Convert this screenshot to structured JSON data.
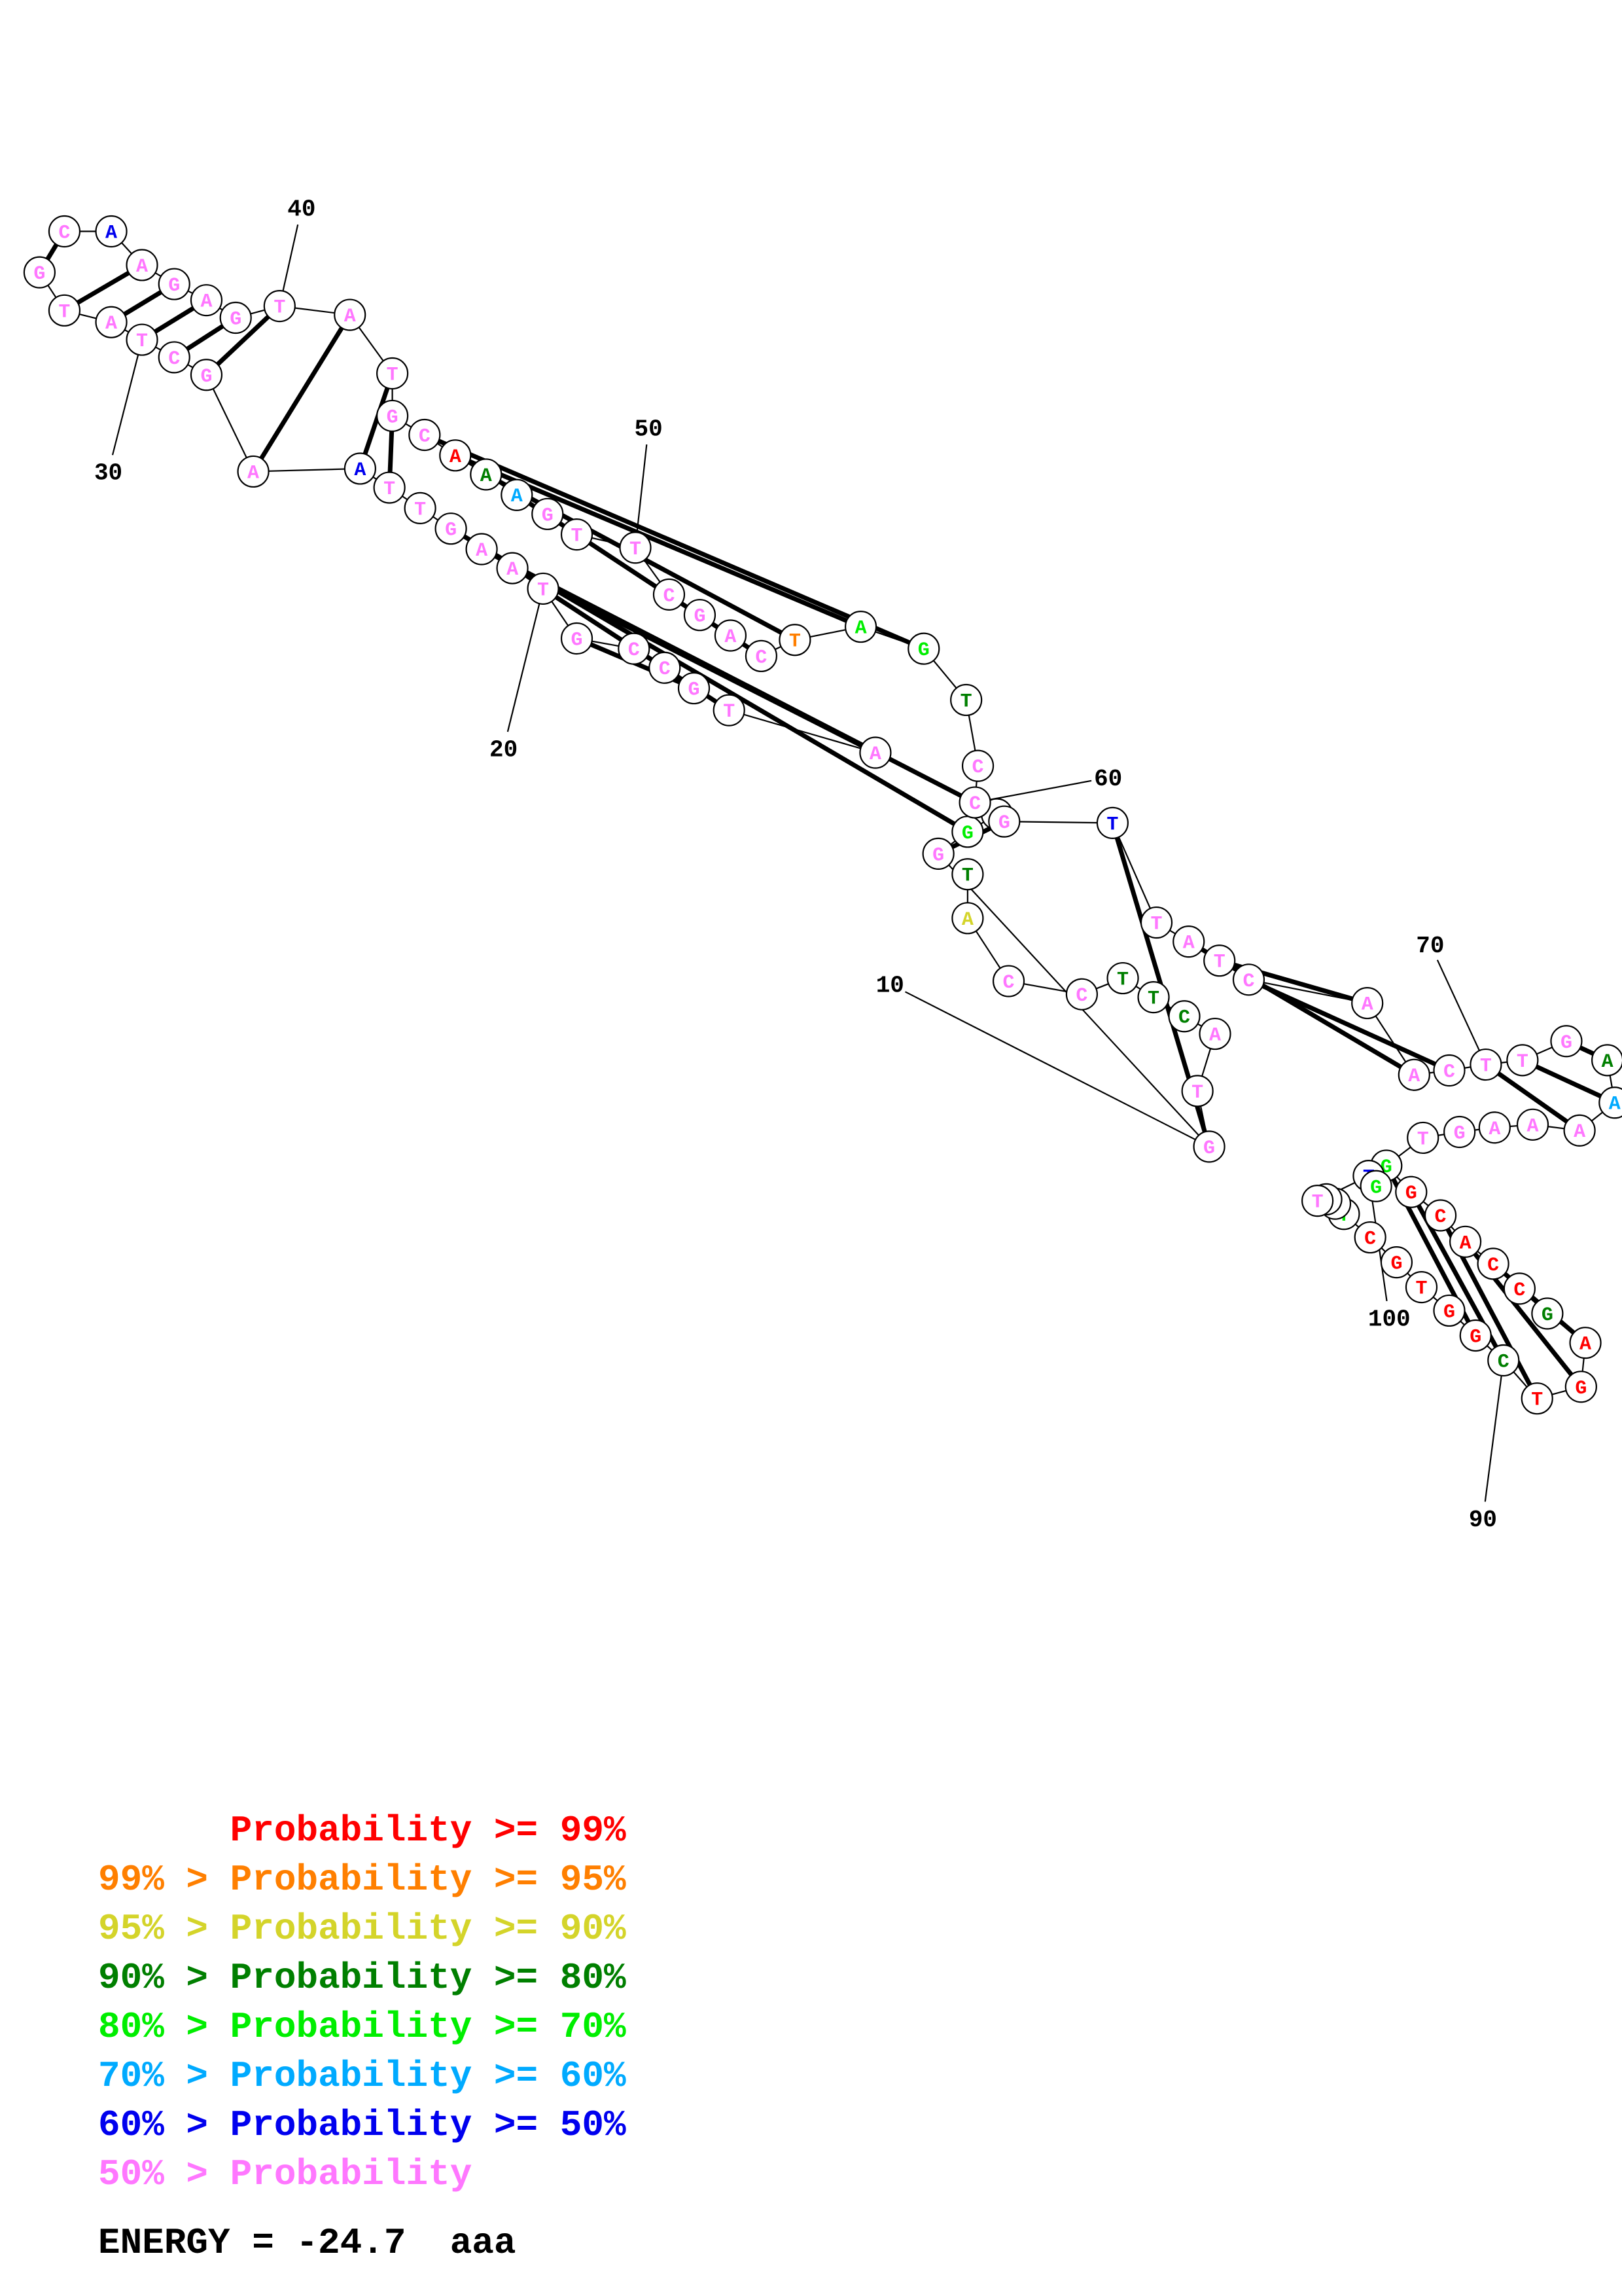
{
  "colors": {
    "p99": "#ff0000",
    "p95": "#ff7f00",
    "p90": "#d4d42a",
    "p80": "#007f00",
    "p70": "#00ee00",
    "p60": "#00aaff",
    "p50": "#0000ee",
    "p00": "#ff77ff",
    "line": "#000000"
  },
  "legend": [
    {
      "low": "",
      "label": "Probability",
      "high": ">= 99%",
      "color_key": "p99"
    },
    {
      "low": "99% >",
      "label": "Probability",
      "high": ">= 95%",
      "color_key": "p95"
    },
    {
      "low": "95% >",
      "label": "Probability",
      "high": ">= 90%",
      "color_key": "p90"
    },
    {
      "low": "90% >",
      "label": "Probability",
      "high": ">= 80%",
      "color_key": "p80"
    },
    {
      "low": "80% >",
      "label": "Probability",
      "high": ">= 70%",
      "color_key": "p70"
    },
    {
      "low": "70% >",
      "label": "Probability",
      "high": ">= 60%",
      "color_key": "p60"
    },
    {
      "low": "60% >",
      "label": "Probability",
      "high": ">= 50%",
      "color_key": "p50"
    },
    {
      "low": "50% >",
      "label": "Probability",
      "high": "",
      "color_key": "p00"
    }
  ],
  "energy": "ENERGY = -24.7  aaa",
  "position_labels": [
    "10",
    "20",
    "30",
    "40",
    "50",
    "60",
    "70",
    "90",
    "100"
  ],
  "nucleotides": [
    {
      "base": "T",
      "color_key": "p80"
    },
    {
      "base": "A",
      "color_key": "p90"
    },
    {
      "base": "C",
      "color_key": "p00"
    },
    {
      "base": "C",
      "color_key": "p00"
    },
    {
      "base": "T",
      "color_key": "p80"
    },
    {
      "base": "T",
      "color_key": "p80"
    },
    {
      "base": "C",
      "color_key": "p80"
    },
    {
      "base": "A",
      "color_key": "p00"
    },
    {
      "base": "T",
      "color_key": "p00"
    },
    {
      "base": "G",
      "color_key": "p00"
    },
    {
      "base": "G",
      "color_key": "p00"
    },
    {
      "base": "G",
      "color_key": "p70"
    },
    {
      "base": "A",
      "color_key": "p99"
    },
    {
      "base": "A",
      "color_key": "p00"
    },
    {
      "base": "T",
      "color_key": "p00"
    },
    {
      "base": "G",
      "color_key": "p00"
    },
    {
      "base": "C",
      "color_key": "p00"
    },
    {
      "base": "C",
      "color_key": "p00"
    },
    {
      "base": "G",
      "color_key": "p00"
    },
    {
      "base": "T",
      "color_key": "p00"
    },
    {
      "base": "A",
      "color_key": "p00"
    },
    {
      "base": "A",
      "color_key": "p00"
    },
    {
      "base": "G",
      "color_key": "p00"
    },
    {
      "base": "T",
      "color_key": "p00"
    },
    {
      "base": "T",
      "color_key": "p00"
    },
    {
      "base": "A",
      "color_key": "p50"
    },
    {
      "base": "A",
      "color_key": "p00"
    },
    {
      "base": "G",
      "color_key": "p00"
    },
    {
      "base": "C",
      "color_key": "p00"
    },
    {
      "base": "T",
      "color_key": "p00"
    },
    {
      "base": "A",
      "color_key": "p00"
    },
    {
      "base": "T",
      "color_key": "p00"
    },
    {
      "base": "G",
      "color_key": "p00"
    },
    {
      "base": "C",
      "color_key": "p00"
    },
    {
      "base": "A",
      "color_key": "p50"
    },
    {
      "base": "A",
      "color_key": "p00"
    },
    {
      "base": "G",
      "color_key": "p00"
    },
    {
      "base": "A",
      "color_key": "p00"
    },
    {
      "base": "G",
      "color_key": "p00"
    },
    {
      "base": "T",
      "color_key": "p00"
    },
    {
      "base": "A",
      "color_key": "p00"
    },
    {
      "base": "T",
      "color_key": "p00"
    },
    {
      "base": "G",
      "color_key": "p00"
    },
    {
      "base": "C",
      "color_key": "p00"
    },
    {
      "base": "A",
      "color_key": "p99"
    },
    {
      "base": "A",
      "color_key": "p80"
    },
    {
      "base": "A",
      "color_key": "p60"
    },
    {
      "base": "G",
      "color_key": "p00"
    },
    {
      "base": "T",
      "color_key": "p00"
    },
    {
      "base": "T",
      "color_key": "p00"
    },
    {
      "base": "C",
      "color_key": "p00"
    },
    {
      "base": "G",
      "color_key": "p00"
    },
    {
      "base": "A",
      "color_key": "p00"
    },
    {
      "base": "C",
      "color_key": "p00"
    },
    {
      "base": "T",
      "color_key": "p95"
    },
    {
      "base": "A",
      "color_key": "p70"
    },
    {
      "base": "G",
      "color_key": "p70"
    },
    {
      "base": "T",
      "color_key": "p80"
    },
    {
      "base": "C",
      "color_key": "p00"
    },
    {
      "base": "C",
      "color_key": "p00"
    },
    {
      "base": "G",
      "color_key": "p00"
    },
    {
      "base": "T",
      "color_key": "p50"
    },
    {
      "base": "T",
      "color_key": "p00"
    },
    {
      "base": "A",
      "color_key": "p00"
    },
    {
      "base": "T",
      "color_key": "p00"
    },
    {
      "base": "C",
      "color_key": "p00"
    },
    {
      "base": "A",
      "color_key": "p00"
    },
    {
      "base": "A",
      "color_key": "p00"
    },
    {
      "base": "C",
      "color_key": "p00"
    },
    {
      "base": "T",
      "color_key": "p00"
    },
    {
      "base": "T",
      "color_key": "p00"
    },
    {
      "base": "G",
      "color_key": "p00"
    },
    {
      "base": "A",
      "color_key": "p80"
    },
    {
      "base": "A",
      "color_key": "p60"
    },
    {
      "base": "A",
      "color_key": "p00"
    },
    {
      "base": "A",
      "color_key": "p00"
    },
    {
      "base": "A",
      "color_key": "p00"
    },
    {
      "base": "G",
      "color_key": "p00"
    },
    {
      "base": "T",
      "color_key": "p00"
    },
    {
      "base": "G",
      "color_key": "p70"
    },
    {
      "base": "G",
      "color_key": "p99"
    },
    {
      "base": "C",
      "color_key": "p99"
    },
    {
      "base": "A",
      "color_key": "p99"
    },
    {
      "base": "C",
      "color_key": "p99"
    },
    {
      "base": "C",
      "color_key": "p99"
    },
    {
      "base": "G",
      "color_key": "p80"
    },
    {
      "base": "A",
      "color_key": "p99"
    },
    {
      "base": "G",
      "color_key": "p99"
    },
    {
      "base": "T",
      "color_key": "p99"
    },
    {
      "base": "C",
      "color_key": "p80"
    },
    {
      "base": "G",
      "color_key": "p99"
    },
    {
      "base": "G",
      "color_key": "p99"
    },
    {
      "base": "T",
      "color_key": "p99"
    },
    {
      "base": "G",
      "color_key": "p99"
    },
    {
      "base": "C",
      "color_key": "p99"
    },
    {
      "base": "T",
      "color_key": "p70"
    },
    {
      "base": "T",
      "color_key": "p00"
    },
    {
      "base": "T",
      "color_key": "p00"
    },
    {
      "base": "T",
      "color_key": "p00"
    },
    {
      "base": "T",
      "color_key": "p50"
    },
    {
      "base": "G",
      "color_key": "p70"
    },
    {
      "base": "A",
      "color_key": "p99"
    }
  ],
  "pairs": [
    [
      10,
      62
    ],
    [
      11,
      61
    ],
    [
      12,
      23
    ],
    [
      13,
      22
    ],
    [
      14,
      21
    ],
    [
      15,
      20
    ],
    [
      16,
      19
    ],
    [
      17,
      18
    ],
    [
      25,
      43
    ],
    [
      26,
      42
    ],
    [
      27,
      41
    ],
    [
      28,
      40
    ],
    [
      29,
      39
    ],
    [
      30,
      38
    ],
    [
      31,
      37
    ],
    [
      32,
      36
    ],
    [
      33,
      34
    ],
    [
      44,
      57
    ],
    [
      45,
      56
    ],
    [
      46,
      55
    ],
    [
      47,
      54
    ],
    [
      64,
      68
    ],
    [
      65,
      67
    ],
    [
      66,
      69
    ],
    [
      70,
      75
    ],
    [
      71,
      74
    ],
    [
      72,
      73
    ],
    [
      80,
      91
    ],
    [
      81,
      90
    ],
    [
      82,
      89
    ],
    [
      83,
      88
    ],
    [
      84,
      87
    ]
  ]
}
